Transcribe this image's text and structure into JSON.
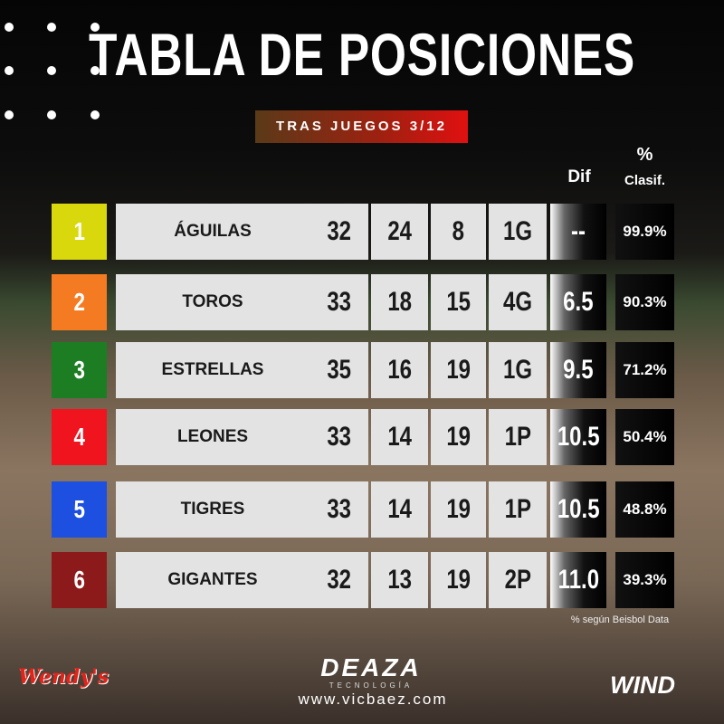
{
  "header": {
    "title": "TABLA DE POSICIONES",
    "subtitle": "TRAS JUEGOS 3/12"
  },
  "columns": {
    "dif": "Dif",
    "pct_symbol": "%",
    "pct": "Clasif."
  },
  "table": {
    "rows": [
      {
        "rank": 1,
        "color": "#d8d80c",
        "team": "ÁGUILAS",
        "games": 32,
        "wins": 24,
        "losses": 8,
        "streak": "1G",
        "dif": "--",
        "pct": "99.9%"
      },
      {
        "rank": 2,
        "color": "#f47b22",
        "team": "TOROS",
        "games": 33,
        "wins": 18,
        "losses": 15,
        "streak": "4G",
        "dif": "6.5",
        "pct": "90.3%"
      },
      {
        "rank": 3,
        "color": "#1d7d22",
        "team": "ESTRELLAS",
        "games": 35,
        "wins": 16,
        "losses": 19,
        "streak": "1G",
        "dif": "9.5",
        "pct": "71.2%"
      },
      {
        "rank": 4,
        "color": "#f0141e",
        "team": "LEONES",
        "games": 33,
        "wins": 14,
        "losses": 19,
        "streak": "1P",
        "dif": "10.5",
        "pct": "50.4%"
      },
      {
        "rank": 5,
        "color": "#1d4fe0",
        "team": "TIGRES",
        "games": 33,
        "wins": 14,
        "losses": 19,
        "streak": "1P",
        "dif": "10.5",
        "pct": "48.8%"
      },
      {
        "rank": 6,
        "color": "#8c1a1a",
        "team": "GIGANTES",
        "games": 32,
        "wins": 13,
        "losses": 19,
        "streak": "2P",
        "dif": "11.0",
        "pct": "39.3%"
      }
    ]
  },
  "footnote": "% según Beisbol Data",
  "footer": {
    "sponsor_left": "Wendy's",
    "brand": "DEAZA",
    "brand_sub": "TECNOLOGÍA",
    "website": "www.vicbaez.com",
    "sponsor_right": "WIND"
  }
}
